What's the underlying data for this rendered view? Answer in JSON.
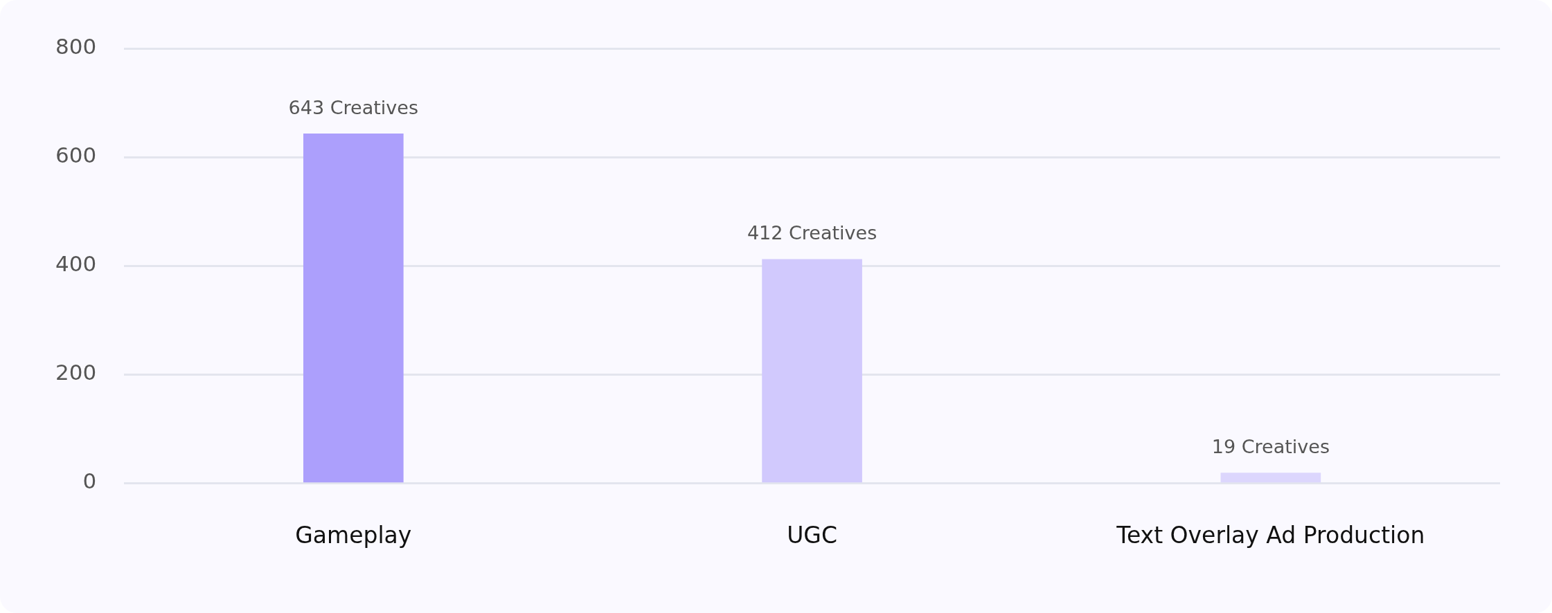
{
  "chart_data": {
    "type": "bar",
    "categories": [
      "Gameplay",
      "UGC",
      "Text Overlay Ad Production"
    ],
    "values": [
      643,
      412,
      19
    ],
    "colors": [
      "#ac9ffc",
      "#d1c9fd",
      "#dcd6fd"
    ],
    "value_labels": [
      "643 Creatives",
      "412 Creatives",
      "19 Creatives"
    ],
    "ylim": [
      0,
      800
    ],
    "yticks": [
      0,
      200,
      400,
      600,
      800
    ],
    "grid": "y",
    "legend": false
  }
}
